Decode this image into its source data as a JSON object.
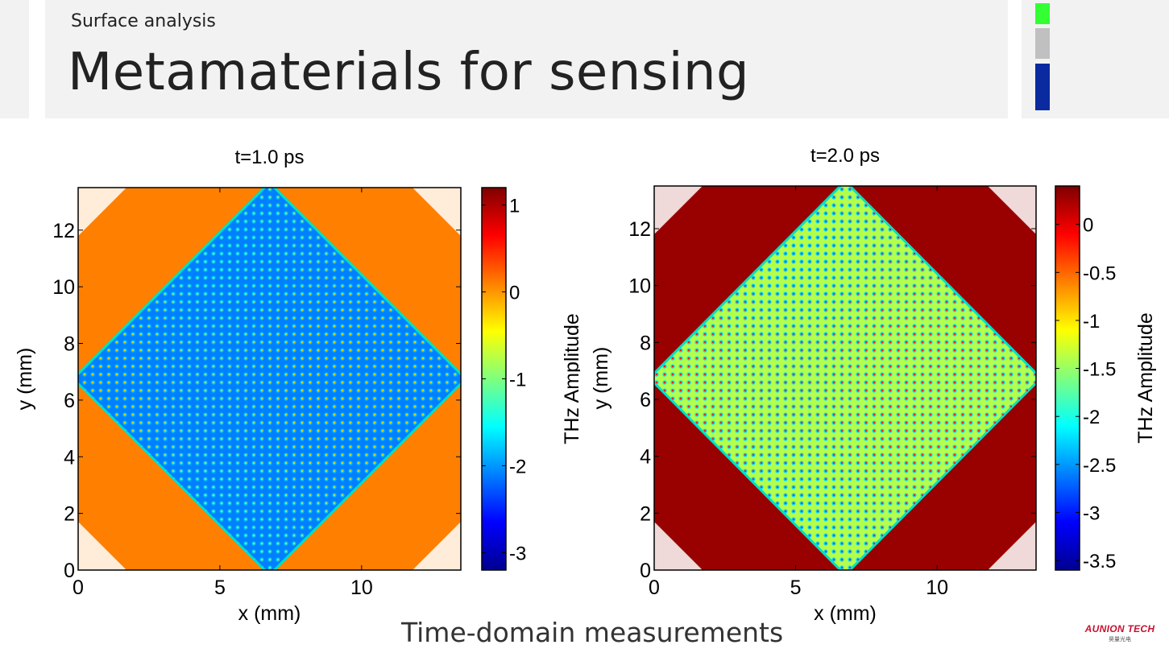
{
  "header": {
    "subtitle": "Surface analysis",
    "title": "Metamaterials for sensing"
  },
  "accent_colors": [
    "#33ff33",
    "#c0c0c0",
    "#0a2aa0"
  ],
  "caption": "Time-domain measurements",
  "logo": {
    "text": "AUNION TECH",
    "sub": "昊量光电"
  },
  "chart_data": [
    {
      "type": "heatmap",
      "title": "t=1.0 ps",
      "xlabel": "x (mm)",
      "ylabel": "y (mm)",
      "xlim": [
        0,
        13.5
      ],
      "ylim": [
        0,
        13.5
      ],
      "x_ticks": [
        0,
        5,
        10
      ],
      "y_ticks": [
        0,
        2,
        4,
        6,
        8,
        10,
        12
      ],
      "colorbar": {
        "label": "THz Amplitude",
        "range": [
          -3.2,
          1.2
        ],
        "ticks": [
          "1",
          "0",
          "-1",
          "-2",
          "-3"
        ],
        "tick_values": [
          1,
          0,
          -1,
          -2,
          -3
        ]
      },
      "colormap": "jet",
      "regions": {
        "center_diamond_value": -2.1,
        "corner_value": 0.1
      }
    },
    {
      "type": "heatmap",
      "title": "t=2.0 ps",
      "xlabel": "x (mm)",
      "ylabel": "y (mm)",
      "xlim": [
        0,
        13.5
      ],
      "ylim": [
        0,
        13.5
      ],
      "x_ticks": [
        0,
        5,
        10
      ],
      "y_ticks": [
        0,
        2,
        4,
        6,
        8,
        10,
        12
      ],
      "colorbar": {
        "label": "THz Amplitude",
        "range": [
          -3.6,
          0.4
        ],
        "ticks": [
          "0",
          "-0.5",
          "-1",
          "-1.5",
          "-2",
          "-2.5",
          "-3",
          "-3.5"
        ],
        "tick_values": [
          0,
          -0.5,
          -1,
          -1.5,
          -2,
          -2.5,
          -3,
          -3.5
        ]
      },
      "colormap": "jet",
      "regions": {
        "center_diamond_value": -1.4,
        "corner_value": 0.3
      }
    }
  ]
}
